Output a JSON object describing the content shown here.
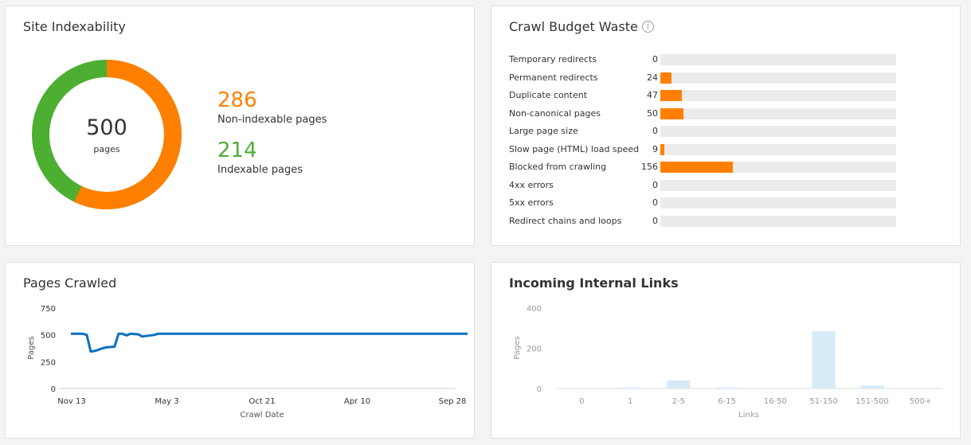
{
  "colors": {
    "orange": "#ff8000",
    "green": "#4caf32",
    "blue": "#0a70c0",
    "lightblue": "#d6eaf8"
  },
  "indexability": {
    "title": "Site Indexability",
    "total": "500",
    "total_label": "pages",
    "non_indexable": {
      "value": "286",
      "label": "Non-indexable pages"
    },
    "indexable": {
      "value": "214",
      "label": "Indexable pages"
    }
  },
  "budget": {
    "title": "Crawl Budget Waste",
    "info_icon": "info-icon",
    "max": 508,
    "rows": [
      {
        "label": "Temporary redirects",
        "value": 0
      },
      {
        "label": "Permanent redirects",
        "value": 24
      },
      {
        "label": "Duplicate content",
        "value": 47
      },
      {
        "label": "Non-canonical pages",
        "value": 50
      },
      {
        "label": "Large page size",
        "value": 0
      },
      {
        "label": "Slow page (HTML) load speed",
        "value": 9
      },
      {
        "label": "Blocked from crawling",
        "value": 156
      },
      {
        "label": "4xx errors",
        "value": 0
      },
      {
        "label": "5xx errors",
        "value": 0
      },
      {
        "label": "Redirect chains and loops",
        "value": 0
      }
    ]
  },
  "chart_data": [
    {
      "type": "line",
      "title": "Pages Crawled",
      "xlabel": "Crawl Date",
      "ylabel": "Pages",
      "ylim": [
        0,
        750
      ],
      "yticks": [
        "0",
        "250",
        "500",
        "750"
      ],
      "xticks": [
        "Nov 13",
        "May 3",
        "Oct 21",
        "Apr 10",
        "Sep 28"
      ],
      "x": [
        0,
        3,
        4,
        5,
        6,
        8,
        9,
        11,
        12,
        13,
        14,
        15,
        17,
        18,
        20,
        21,
        22,
        23,
        24,
        26,
        100
      ],
      "series": [
        {
          "name": "Pages",
          "values": [
            510,
            510,
            500,
            345,
            350,
            375,
            385,
            390,
            510,
            510,
            495,
            510,
            505,
            485,
            495,
            500,
            510,
            510,
            510,
            510,
            510
          ]
        }
      ]
    },
    {
      "type": "bar",
      "title": "Incoming Internal Links",
      "xlabel": "Links",
      "ylabel": "Pages",
      "ylim": [
        0,
        400
      ],
      "yticks": [
        "0",
        "200",
        "400"
      ],
      "categories": [
        "0",
        "1",
        "2-5",
        "6-15",
        "16-50",
        "51-150",
        "151-500",
        "500+"
      ],
      "values": [
        1,
        5,
        40,
        5,
        1,
        285,
        15,
        0
      ]
    }
  ]
}
